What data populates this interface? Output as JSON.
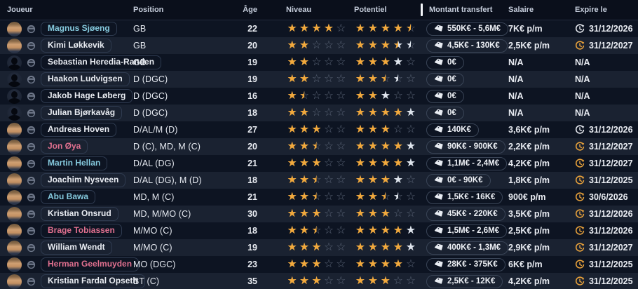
{
  "table": {
    "columns": {
      "joueur": "Joueur",
      "position": "Position",
      "age": "Âge",
      "niveau": "Niveau",
      "potentiel": "Potentiel",
      "montant": "Montant transfert",
      "salaire": "Salaire",
      "expire": "Expire le"
    },
    "star_colors": {
      "g": "#f2a93c",
      "s": "#dfe5ed",
      "empty": "#5c6678"
    },
    "name_colors": {
      "link": "#85c9dd",
      "alert": "#e0708f",
      "normal": "#e9ecf2"
    },
    "clock_colors": {
      "white": "#e8ebf1",
      "orange": "#e9a23b"
    },
    "rows": [
      {
        "name": "Magnus Sjøeng",
        "name_style": "link",
        "avatar": "photo",
        "position": "GB",
        "age": "22",
        "niveau": [
          "gg",
          "gg",
          "gg",
          "gg",
          "ee"
        ],
        "potentiel": [
          "gg",
          "gg",
          "gg",
          "gg",
          "ge"
        ],
        "transfer": "550K€ - 5,6M€",
        "salary": "7K€ p/m",
        "expire": "31/12/2026",
        "clock": "white"
      },
      {
        "name": "Kimi Løkkevik",
        "name_style": "normal",
        "avatar": "photo",
        "position": "GB",
        "age": "20",
        "niveau": [
          "gg",
          "gg",
          "ee",
          "ee",
          "ee"
        ],
        "potentiel": [
          "gg",
          "gg",
          "gg",
          "gs",
          "se"
        ],
        "transfer": "4,5K€ - 130K€",
        "salary": "2,5K€ p/m",
        "expire": "31/12/2027",
        "clock": "orange"
      },
      {
        "name": "Sebastian Heredia-Randen",
        "name_style": "normal",
        "avatar": "silhouette",
        "position": "GB",
        "age": "19",
        "niveau": [
          "gg",
          "gg",
          "ee",
          "ee",
          "ee"
        ],
        "potentiel": [
          "gg",
          "gg",
          "gg",
          "ss",
          "ee"
        ],
        "transfer": "0€",
        "salary": "N/A",
        "expire": "N/A",
        "clock": "none"
      },
      {
        "name": "Haakon Ludvigsen",
        "name_style": "normal",
        "avatar": "silhouette",
        "position": "D (DGC)",
        "age": "19",
        "niveau": [
          "gg",
          "gg",
          "ee",
          "ee",
          "ee"
        ],
        "potentiel": [
          "gg",
          "gg",
          "ge",
          "se",
          "ee"
        ],
        "transfer": "0€",
        "salary": "N/A",
        "expire": "N/A",
        "clock": "none"
      },
      {
        "name": "Jakob Hage Løberg",
        "name_style": "normal",
        "avatar": "silhouette",
        "position": "D (DGC)",
        "age": "16",
        "niveau": [
          "gg",
          "ge",
          "ee",
          "ee",
          "ee"
        ],
        "potentiel": [
          "gg",
          "gg",
          "ss",
          "ee",
          "ee"
        ],
        "transfer": "0€",
        "salary": "N/A",
        "expire": "N/A",
        "clock": "none"
      },
      {
        "name": "Julian Bjørkavåg",
        "name_style": "normal",
        "avatar": "silhouette",
        "position": "D (DGC)",
        "age": "18",
        "niveau": [
          "gg",
          "gg",
          "ee",
          "ee",
          "ee"
        ],
        "potentiel": [
          "gg",
          "gg",
          "gg",
          "gg",
          "ss"
        ],
        "transfer": "0€",
        "salary": "N/A",
        "expire": "N/A",
        "clock": "none"
      },
      {
        "name": "Andreas Hoven",
        "name_style": "normal",
        "avatar": "photo",
        "position": "D/AL/M (D)",
        "age": "27",
        "niveau": [
          "gg",
          "gg",
          "gg",
          "ee",
          "ee"
        ],
        "potentiel": [
          "gg",
          "gg",
          "gg",
          "ee",
          "ee"
        ],
        "transfer": "140K€",
        "salary": "3,6K€ p/m",
        "expire": "31/12/2026",
        "clock": "white"
      },
      {
        "name": "Jon Øya",
        "name_style": "alert",
        "avatar": "photo",
        "position": "D (C), MD, M (C)",
        "age": "20",
        "niveau": [
          "gg",
          "gg",
          "ge",
          "ee",
          "ee"
        ],
        "potentiel": [
          "gg",
          "gg",
          "gg",
          "gg",
          "ss"
        ],
        "transfer": "90K€ - 900K€",
        "salary": "2,2K€ p/m",
        "expire": "31/12/2027",
        "clock": "orange"
      },
      {
        "name": "Martin Hellan",
        "name_style": "link",
        "avatar": "photo",
        "position": "D/AL (DG)",
        "age": "21",
        "niveau": [
          "gg",
          "gg",
          "gg",
          "ee",
          "ee"
        ],
        "potentiel": [
          "gg",
          "gg",
          "gg",
          "gg",
          "ss"
        ],
        "transfer": "1,1M€ - 2,4M€",
        "salary": "4,2K€ p/m",
        "expire": "31/12/2027",
        "clock": "orange"
      },
      {
        "name": "Joachim Nysveen",
        "name_style": "normal",
        "avatar": "photo",
        "position": "D/AL (DG), M (D)",
        "age": "18",
        "niveau": [
          "gg",
          "gg",
          "ge",
          "ee",
          "ee"
        ],
        "potentiel": [
          "gg",
          "gg",
          "gg",
          "ss",
          "ee"
        ],
        "transfer": "0€ - 90K€",
        "salary": "1,8K€ p/m",
        "expire": "31/12/2025",
        "clock": "orange"
      },
      {
        "name": "Abu Bawa",
        "name_style": "link",
        "avatar": "photo",
        "position": "MD, M (C)",
        "age": "21",
        "niveau": [
          "gg",
          "gg",
          "ge",
          "ee",
          "ee"
        ],
        "potentiel": [
          "gg",
          "gg",
          "ge",
          "se",
          "ee"
        ],
        "transfer": "1,5K€ - 16K€",
        "salary": "900€ p/m",
        "expire": "30/6/2026",
        "clock": "orange"
      },
      {
        "name": "Kristian Onsrud",
        "name_style": "normal",
        "avatar": "photo",
        "position": "MD, M/MO (C)",
        "age": "30",
        "niveau": [
          "gg",
          "gg",
          "gg",
          "ee",
          "ee"
        ],
        "potentiel": [
          "gg",
          "gg",
          "gg",
          "ee",
          "ee"
        ],
        "transfer": "45K€ - 220K€",
        "salary": "3,5K€ p/m",
        "expire": "31/12/2026",
        "clock": "orange"
      },
      {
        "name": "Brage Tobiassen",
        "name_style": "alert",
        "avatar": "photo",
        "position": "M/MO (C)",
        "age": "18",
        "niveau": [
          "gg",
          "gg",
          "ge",
          "ee",
          "ee"
        ],
        "potentiel": [
          "gg",
          "gg",
          "gg",
          "gg",
          "ss"
        ],
        "transfer": "1,5M€ - 2,6M€",
        "salary": "2,5K€ p/m",
        "expire": "31/12/2026",
        "clock": "orange"
      },
      {
        "name": "William Wendt",
        "name_style": "normal",
        "avatar": "photo",
        "position": "M/MO (C)",
        "age": "19",
        "niveau": [
          "gg",
          "gg",
          "gg",
          "ee",
          "ee"
        ],
        "potentiel": [
          "gg",
          "gg",
          "gg",
          "gg",
          "ss"
        ],
        "transfer": "400K€ - 1,3M€",
        "salary": "2,9K€ p/m",
        "expire": "31/12/2027",
        "clock": "orange"
      },
      {
        "name": "Herman Geelmuyden",
        "name_style": "alert",
        "avatar": "photo",
        "position": "MO (DGC)",
        "age": "23",
        "niveau": [
          "gg",
          "gg",
          "gg",
          "ee",
          "ee"
        ],
        "potentiel": [
          "gg",
          "gg",
          "gg",
          "gg",
          "ee"
        ],
        "transfer": "28K€ - 375K€",
        "salary": "6K€ p/m",
        "expire": "31/12/2025",
        "clock": "orange"
      },
      {
        "name": "Kristian Fardal Opseth",
        "name_style": "normal",
        "avatar": "photo",
        "position": "BT (C)",
        "age": "35",
        "niveau": [
          "gg",
          "gg",
          "gg",
          "ee",
          "ee"
        ],
        "potentiel": [
          "gg",
          "gg",
          "gg",
          "ee",
          "ee"
        ],
        "transfer": "2,5K€ - 12K€",
        "salary": "4,2K€ p/m",
        "expire": "31/12/2025",
        "clock": "orange"
      }
    ]
  }
}
